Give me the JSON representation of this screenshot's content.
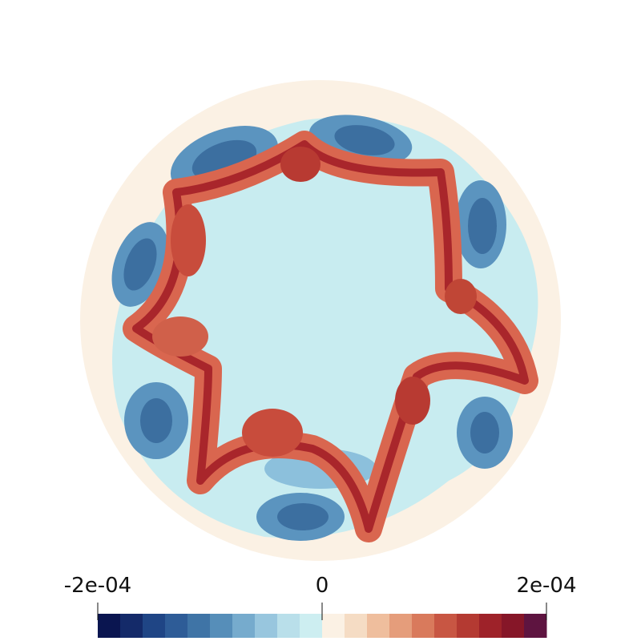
{
  "colorbar": {
    "range": [
      -0.0002,
      0.0002
    ],
    "ticks": [
      {
        "value": -0.0002,
        "label": "-2e-04"
      },
      {
        "value": 0,
        "label": "0"
      },
      {
        "value": 0.0002,
        "label": "2e-04"
      }
    ],
    "colors": [
      "#0a1550",
      "#142a69",
      "#1f4585",
      "#2e5c97",
      "#3f74a6",
      "#568eb9",
      "#76abcd",
      "#98c6de",
      "#b9dfea",
      "#cdeef1",
      "#fbf1e4",
      "#f5dcc4",
      "#efbe9d",
      "#e59d7b",
      "#d97a5c",
      "#c85643",
      "#b43a32",
      "#9e2229",
      "#861628",
      "#5e1440"
    ]
  }
}
